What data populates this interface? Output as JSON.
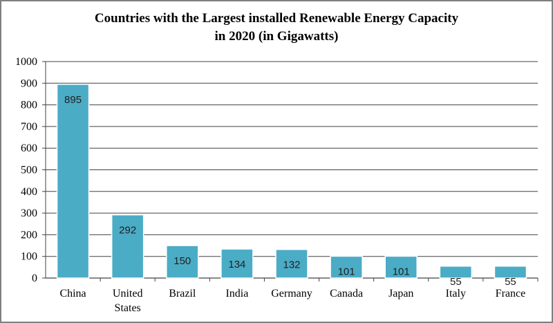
{
  "chart_data": {
    "type": "bar",
    "title": "Countries with the Largest installed Renewable Energy Capacity",
    "subtitle": "in 2020 (in Gigawatts)",
    "categories": [
      [
        "China"
      ],
      [
        "United",
        "States"
      ],
      [
        "Brazil"
      ],
      [
        "India"
      ],
      [
        "Germany"
      ],
      [
        "Canada"
      ],
      [
        "Japan"
      ],
      [
        "Italy"
      ],
      [
        "France"
      ]
    ],
    "values": [
      895,
      292,
      150,
      134,
      132,
      101,
      101,
      55,
      55
    ],
    "ylim": [
      0,
      1000
    ],
    "yticks": [
      0,
      100,
      200,
      300,
      400,
      500,
      600,
      700,
      800,
      900,
      1000
    ],
    "grid": true,
    "colors": {
      "bar": "#4bacc6",
      "bar_edge": "#ffffff",
      "grid": "#404040"
    }
  }
}
